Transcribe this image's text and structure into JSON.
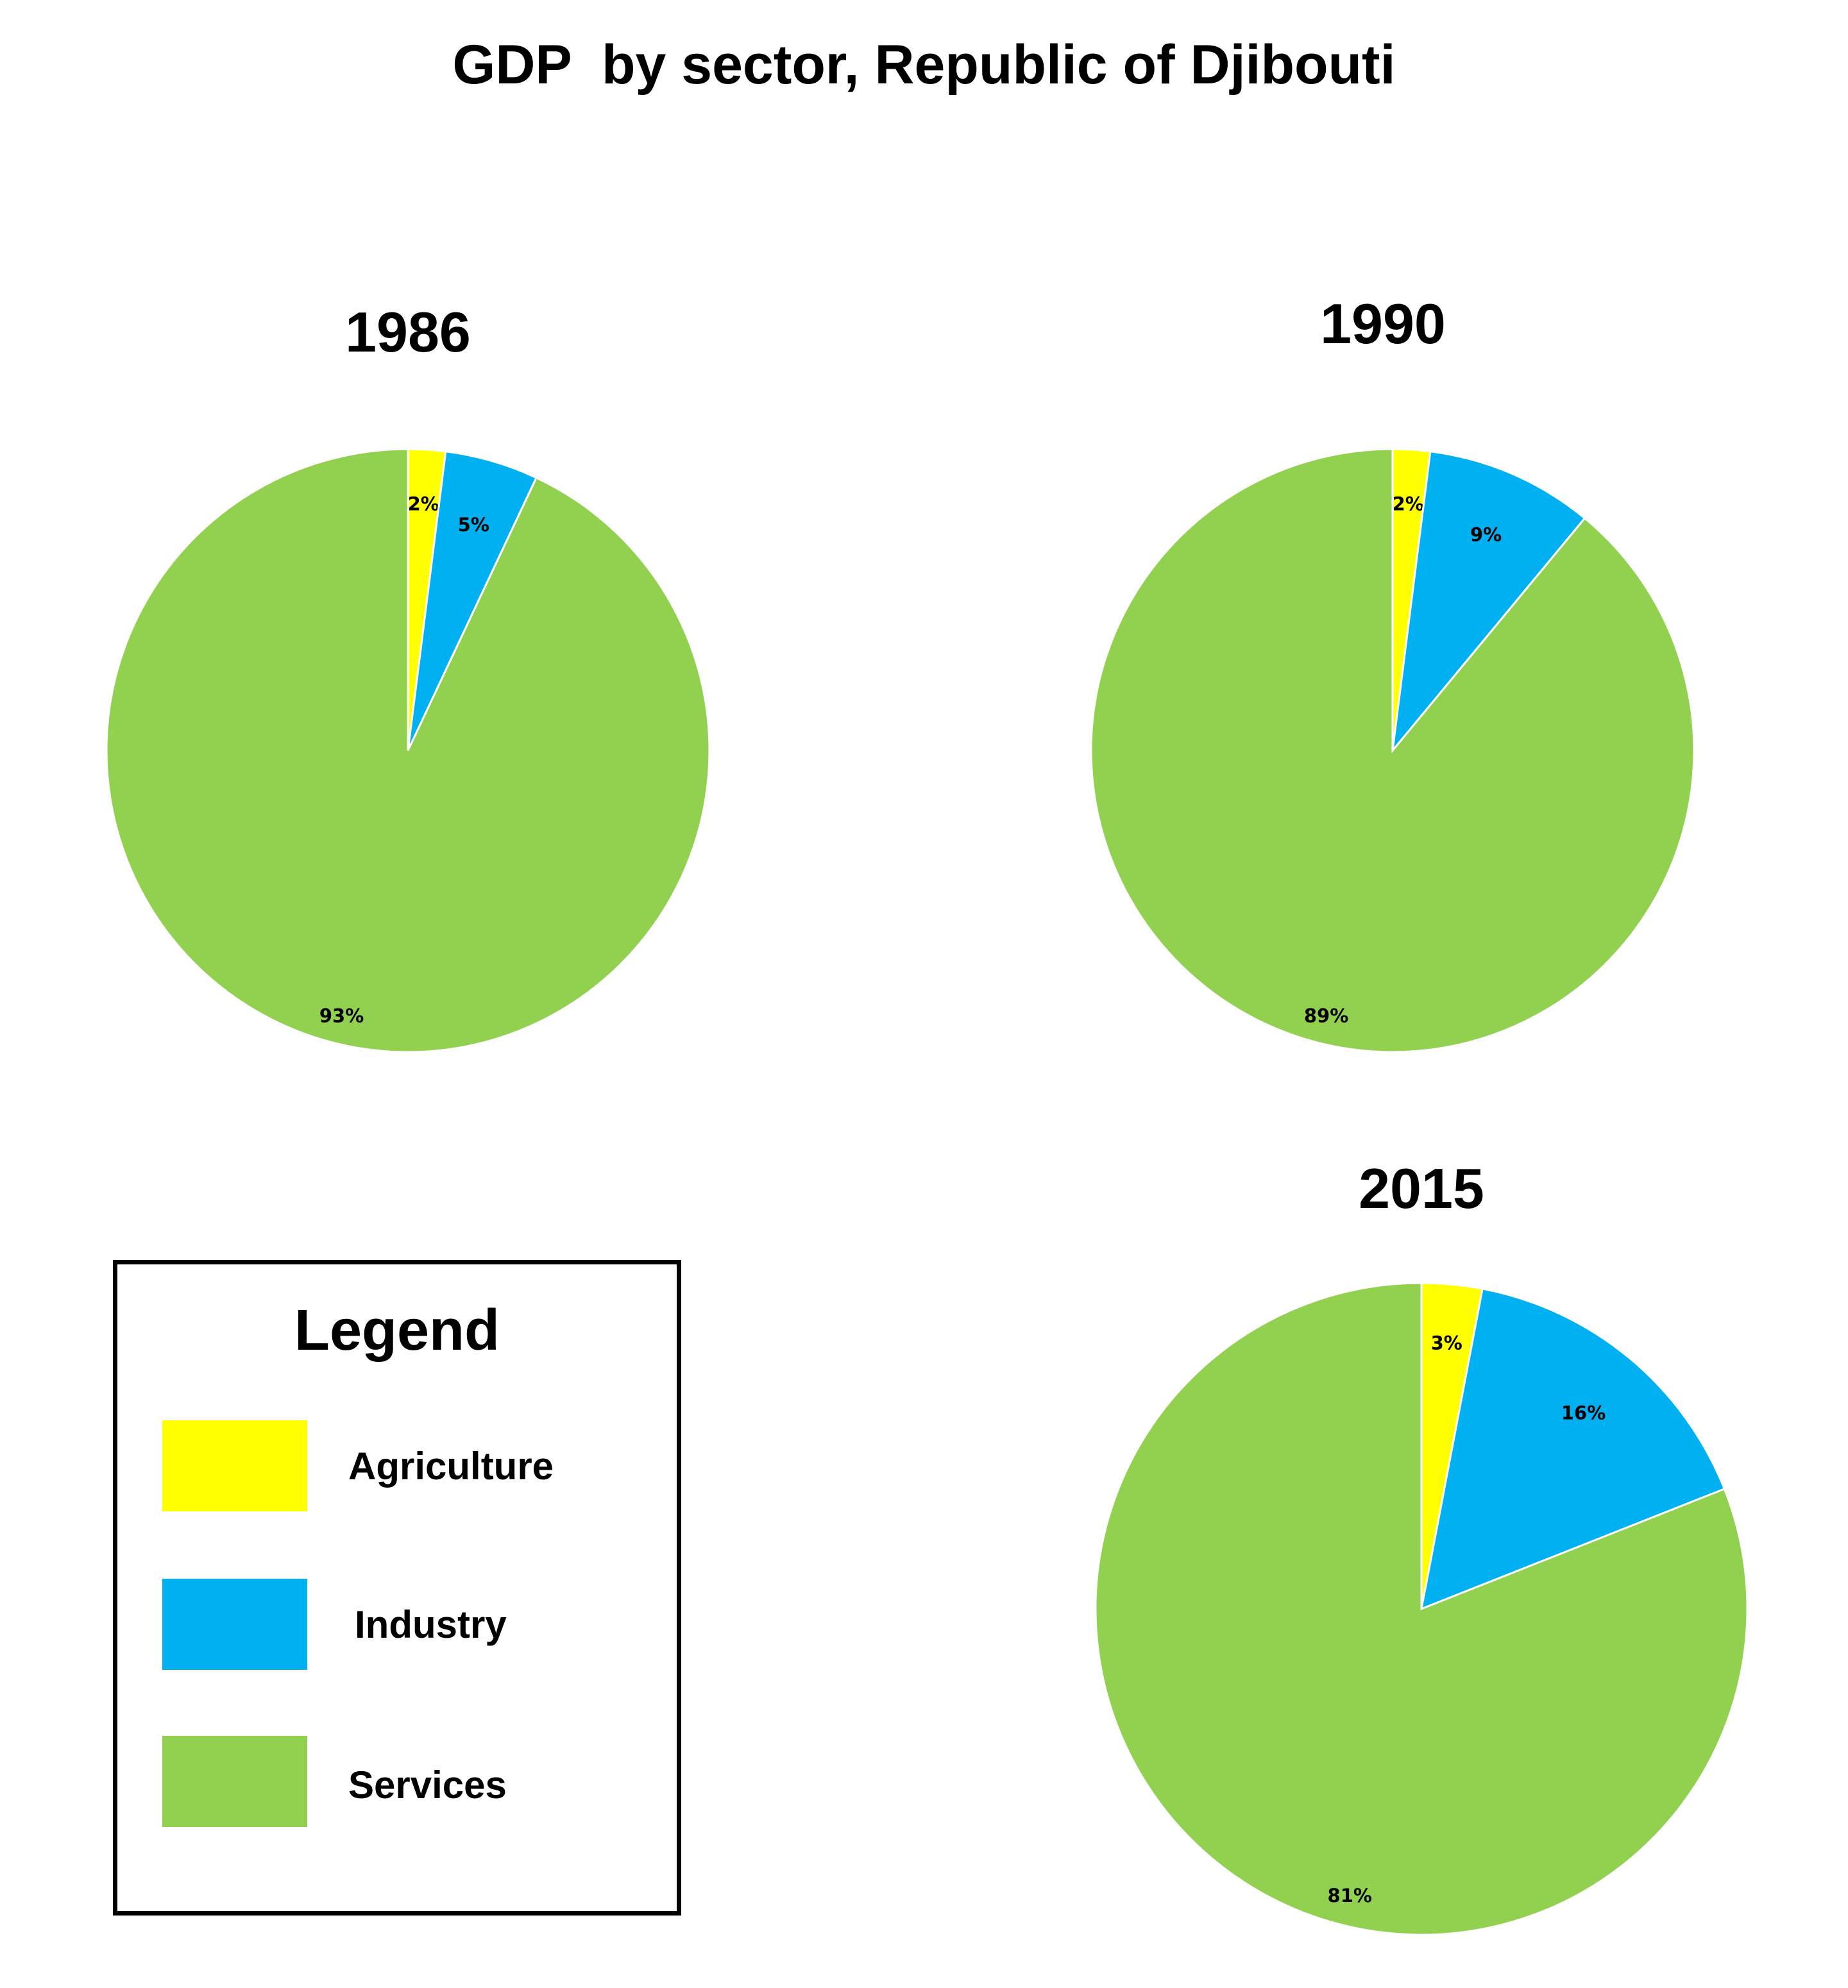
{
  "title": "GDP  by sector, Republic of Djibouti",
  "colors": {
    "Agriculture": "#ffff00",
    "Industry": "#00b0f0",
    "Services": "#92d050"
  },
  "legend": {
    "title": "Legend",
    "items": [
      {
        "label": "Agriculture",
        "color": "#ffff00"
      },
      {
        "label": "Industry",
        "color": "#00b0f0"
      },
      {
        "label": "Services",
        "color": "#92d050"
      }
    ]
  },
  "chart_data": [
    {
      "type": "pie",
      "title": "1986",
      "slices": [
        {
          "name": "Agriculture",
          "value": 2,
          "label": "2%"
        },
        {
          "name": "Industry",
          "value": 5,
          "label": "5%"
        },
        {
          "name": "Services",
          "value": 93,
          "label": "93%"
        }
      ]
    },
    {
      "type": "pie",
      "title": "1990",
      "slices": [
        {
          "name": "Agriculture",
          "value": 2,
          "label": "2%"
        },
        {
          "name": "Industry",
          "value": 9,
          "label": "9%"
        },
        {
          "name": "Services",
          "value": 89,
          "label": "89%"
        }
      ]
    },
    {
      "type": "pie",
      "title": "2015",
      "slices": [
        {
          "name": "Agriculture",
          "value": 3,
          "label": "3%"
        },
        {
          "name": "Industry",
          "value": 16,
          "label": "16%"
        },
        {
          "name": "Services",
          "value": 81,
          "label": "81%"
        }
      ]
    }
  ]
}
